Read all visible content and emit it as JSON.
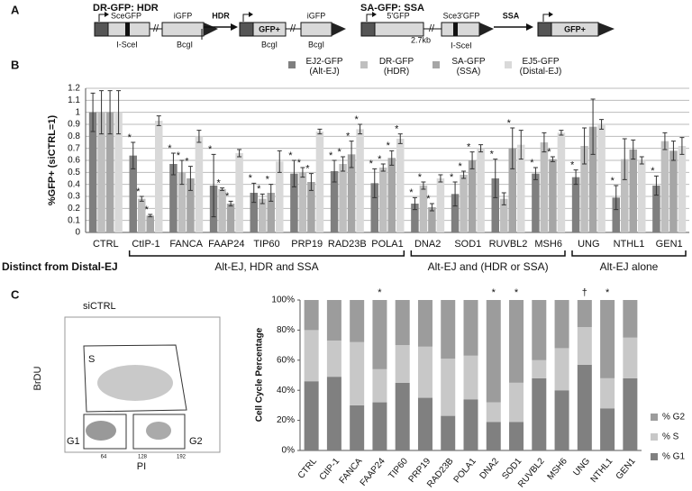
{
  "panel_a": {
    "label": "A",
    "dr_title": "DR-GFP: HDR",
    "dr_sceGFP": "SceGFP",
    "dr_iGFP": "iGFP",
    "dr_isceI": "I-SceI",
    "dr_bcgI": "BcgI",
    "hdr_arrow": "HDR",
    "hdr_gfp": "GFP+",
    "hdr_bcgI": "BcgI",
    "hdr_iGFP": "iGFP",
    "hdr_bcgI2": "BcgI",
    "sa_title": "SA-GFP: SSA",
    "sa_5gfp": "5'GFP",
    "sa_gap": "2.7kb",
    "sa_sce3gfp": "Sce3'GFP",
    "sa_isceI": "I-SceI",
    "ssa_arrow": "SSA",
    "ssa_gfp": "GFP+"
  },
  "panel_b_label": "B",
  "panel_c_label": "C",
  "flow": {
    "title": "siCTRL",
    "ylabel": "BrDU",
    "xlabel": "PI",
    "gate_s": "S",
    "gate_g1": "G1",
    "gate_g2": "G2",
    "xticks": [
      "64",
      "128",
      "192"
    ]
  },
  "chart_data": [
    {
      "type": "bar",
      "ylabel": "%GFP+ (siCTRL=1)",
      "categories": [
        "CTRL",
        "CtIP-1",
        "FANCA",
        "FAAP24",
        "TIP60",
        "PRP19",
        "RAD23B",
        "POLA1",
        "DNA2",
        "SOD1",
        "RUVBL2",
        "MSH6",
        "UNG",
        "NTHL1",
        "GEN1"
      ],
      "series": [
        {
          "name": "EJ2-GFP (Alt-EJ)",
          "color": "#7f7f7f",
          "values": [
            1,
            0.64,
            0.57,
            0.39,
            0.33,
            0.49,
            0.51,
            0.41,
            0.24,
            0.32,
            0.45,
            0.49,
            0.46,
            0.29,
            0.39
          ],
          "errors": [
            0.16,
            0.11,
            0.09,
            0.26,
            0.08,
            0.11,
            0.09,
            0.12,
            0.05,
            0.1,
            0.16,
            0.05,
            0.06,
            0.1,
            0.08
          ],
          "annotations": [
            null,
            "*",
            "*",
            "*",
            "*",
            "*",
            "*",
            "*",
            "*",
            "*",
            "*",
            "*",
            "*",
            "*",
            "*"
          ]
        },
        {
          "name": "DR-GFP (HDR)",
          "color": "#bfbfbf",
          "values": [
            1,
            0.28,
            0.5,
            0.36,
            0.28,
            0.5,
            0.57,
            0.54,
            0.39,
            0.48,
            0.28,
            0.75,
            0.72,
            0.61,
            0.76
          ],
          "errors": [
            0.18,
            0.02,
            0.1,
            0.01,
            0.04,
            0.04,
            0.06,
            0.03,
            0.03,
            0.03,
            0.05,
            0.08,
            0.15,
            0.17,
            0.07
          ],
          "annotations": [
            null,
            "*",
            "*",
            "*",
            "*",
            "*",
            "*",
            "*",
            "*",
            "*",
            null,
            null,
            null,
            null,
            null
          ]
        },
        {
          "name": "SA-GFP (SSA)",
          "color": "#a6a6a6",
          "values": [
            1,
            0.14,
            0.45,
            0.24,
            0.33,
            0.42,
            0.65,
            0.62,
            0.21,
            0.6,
            0.7,
            0.61,
            0.88,
            0.69,
            0.68
          ],
          "errors": [
            0.18,
            0.01,
            0.1,
            0.02,
            0.07,
            0.07,
            0.11,
            0.06,
            0.03,
            0.07,
            0.17,
            0.02,
            0.23,
            0.08,
            0.08
          ],
          "annotations": [
            null,
            "*",
            "*",
            "*",
            "*",
            "*",
            "*",
            "*",
            "*",
            "*",
            "*",
            "*",
            null,
            null,
            null
          ]
        },
        {
          "name": "EJ5-GFP (Distal-EJ)",
          "color": "#d9d9d9",
          "values": [
            1,
            0.93,
            0.8,
            0.66,
            0.59,
            0.84,
            0.86,
            0.78,
            0.45,
            0.7,
            0.73,
            0.83,
            0.9,
            0.6,
            0.72
          ],
          "errors": [
            0.18,
            0.04,
            0.05,
            0.03,
            0.09,
            0.02,
            0.04,
            0.04,
            0.03,
            0.03,
            0.12,
            0.02,
            0.04,
            0.03,
            0.07
          ],
          "annotations": [
            null,
            null,
            null,
            null,
            null,
            null,
            "*",
            "*",
            null,
            null,
            null,
            null,
            null,
            null,
            null
          ]
        }
      ],
      "ylim": [
        0,
        1.2
      ],
      "yticks": [
        0,
        0.1,
        0.2,
        0.3,
        0.4,
        0.5,
        0.6,
        0.7,
        0.8,
        0.9,
        1,
        1.1,
        1.2
      ],
      "grid": true,
      "group_title": "Distinct from Distal-EJ",
      "groups": [
        "Alt-EJ, HDR and SSA",
        "Alt-EJ and (HDR or SSA)",
        "Alt-EJ alone"
      ]
    },
    {
      "type": "stacked_bar",
      "ylabel": "Cell Cycle Percentage",
      "categories": [
        "CTRL",
        "CtIP-1",
        "FANCA",
        "FAAP24",
        "TIP60",
        "PRP19",
        "RAD23B",
        "POLA1",
        "DNA2",
        "SOD1",
        "RUVBL2",
        "MSH6",
        "UNG",
        "NTHL1",
        "GEN1"
      ],
      "series": [
        {
          "name": "% G1",
          "color": "#808080",
          "values": [
            46,
            49,
            30,
            32,
            45,
            35,
            23,
            34,
            19,
            19,
            48,
            40,
            57,
            28,
            48
          ]
        },
        {
          "name": "% S",
          "color": "#c8c8c8",
          "values": [
            34,
            24,
            42,
            22,
            25,
            34,
            38,
            29,
            13,
            26,
            12,
            28,
            25,
            20,
            27
          ]
        },
        {
          "name": "% G2",
          "color": "#9c9c9c",
          "values": [
            20,
            27,
            28,
            46,
            30,
            31,
            39,
            37,
            68,
            55,
            40,
            32,
            18,
            52,
            25
          ]
        }
      ],
      "annotations": [
        null,
        null,
        null,
        "*",
        null,
        null,
        null,
        null,
        "*",
        "*",
        null,
        null,
        "†",
        "*",
        null
      ],
      "ylim": [
        0,
        100
      ],
      "yticks": [
        {
          "value": 0,
          "label": "0%"
        },
        {
          "value": 20,
          "label": "20%"
        },
        {
          "value": 40,
          "label": "40%"
        },
        {
          "value": 60,
          "label": "60%"
        },
        {
          "value": 80,
          "label": "80%"
        },
        {
          "value": 100,
          "label": "100%"
        }
      ],
      "grid": false
    }
  ]
}
